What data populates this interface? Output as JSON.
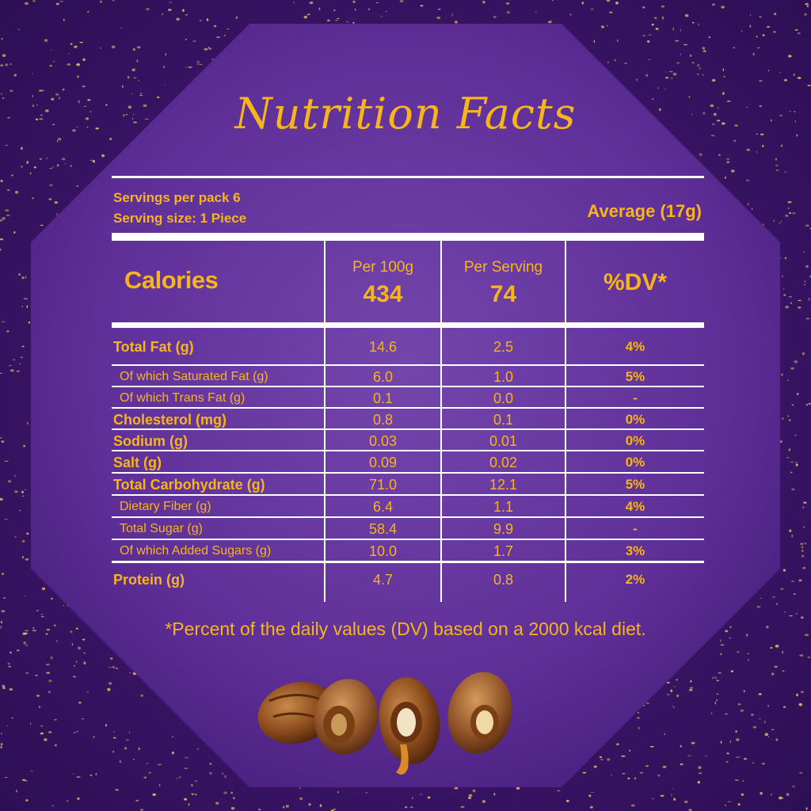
{
  "panel": {
    "title": "Nutrition Facts",
    "servings_per_pack": "Servings per pack 6",
    "serving_size": "Serving size: 1 Piece",
    "average": "Average (17g)"
  },
  "header": {
    "calories_label": "Calories",
    "per100_label": "Per 100g",
    "per100_value": "434",
    "perserving_label": "Per Serving",
    "perserving_value": "74",
    "dv_label": "%DV*"
  },
  "rows": [
    {
      "name": "Total Fat (g)",
      "per100": "14.6",
      "perserving": "2.5",
      "dv": "4%",
      "style": "bold"
    },
    {
      "name": "Of which Saturated Fat (g)",
      "per100": "6.0",
      "perserving": "1.0",
      "dv": "5%",
      "style": "sub"
    },
    {
      "name": "Of which Trans Fat (g)",
      "per100": "0.1",
      "perserving": "0.0",
      "dv": "-",
      "style": "sub"
    },
    {
      "name": "Cholesterol (mg)",
      "per100": "0.8",
      "perserving": "0.1",
      "dv": "0%",
      "style": "bold"
    },
    {
      "name": "Sodium (g)",
      "per100": "0.03",
      "perserving": "0.01",
      "dv": "0%",
      "style": "bold"
    },
    {
      "name": "Salt (g)",
      "per100": "0.09",
      "perserving": "0.02",
      "dv": "0%",
      "style": "bold"
    },
    {
      "name": "Total Carbohydrate (g)",
      "per100": "71.0",
      "perserving": "12.1",
      "dv": "5%",
      "style": "bold"
    },
    {
      "name": "Dietary Fiber (g)",
      "per100": "6.4",
      "perserving": "1.1",
      "dv": "4%",
      "style": "sub"
    },
    {
      "name": "Total Sugar (g)",
      "per100": "58.4",
      "perserving": "9.9",
      "dv": "-",
      "style": "sub"
    },
    {
      "name": "Of which Added Sugars (g)",
      "per100": "10.0",
      "perserving": "1.7",
      "dv": "3%",
      "style": "sub"
    },
    {
      "name": "Protein (g)",
      "per100": "4.7",
      "perserving": "0.8",
      "dv": "2%",
      "style": "bold"
    }
  ],
  "footnote": "*Percent of the daily values (DV) based on a 2000 kcal diet.",
  "colors": {
    "background": "#3a1566",
    "panel": "#6a3aa0",
    "gold": "#f6b51d",
    "rule": "#ffffff"
  },
  "icons": [
    "gold-sparkle-decoration",
    "chocolate-coated-dates-image"
  ]
}
